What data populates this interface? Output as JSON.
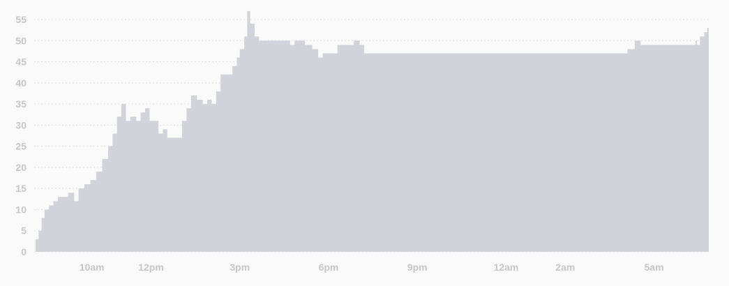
{
  "chart_data": {
    "type": "area",
    "title": "",
    "xlabel": "",
    "ylabel": "",
    "ylim": [
      0,
      55
    ],
    "y_ticks": [
      0,
      5,
      10,
      15,
      20,
      25,
      30,
      35,
      40,
      45,
      50,
      55
    ],
    "x_ticks": [
      {
        "label": "10am",
        "hour": 10
      },
      {
        "label": "12pm",
        "hour": 12
      },
      {
        "label": "3pm",
        "hour": 15
      },
      {
        "label": "6pm",
        "hour": 18
      },
      {
        "label": "9pm",
        "hour": 21
      },
      {
        "label": "12am",
        "hour": 24
      },
      {
        "label": "2am",
        "hour": 26
      },
      {
        "label": "5am",
        "hour": 29
      }
    ],
    "grid": true,
    "fill_color": "#d1d3da",
    "series": [
      {
        "points": [
          [
            8.05,
            0
          ],
          [
            8.1,
            3
          ],
          [
            8.2,
            5
          ],
          [
            8.3,
            8
          ],
          [
            8.4,
            10
          ],
          [
            8.55,
            11
          ],
          [
            8.7,
            12
          ],
          [
            8.85,
            13
          ],
          [
            9.0,
            13
          ],
          [
            9.2,
            14
          ],
          [
            9.4,
            12
          ],
          [
            9.55,
            15
          ],
          [
            9.75,
            16
          ],
          [
            9.95,
            17
          ],
          [
            10.15,
            19
          ],
          [
            10.35,
            22
          ],
          [
            10.55,
            25
          ],
          [
            10.7,
            28
          ],
          [
            10.85,
            32
          ],
          [
            11.0,
            35
          ],
          [
            11.15,
            31
          ],
          [
            11.3,
            32
          ],
          [
            11.5,
            31
          ],
          [
            11.65,
            33
          ],
          [
            11.8,
            34
          ],
          [
            11.95,
            31
          ],
          [
            12.1,
            31
          ],
          [
            12.25,
            28
          ],
          [
            12.4,
            29
          ],
          [
            12.55,
            27
          ],
          [
            12.75,
            27
          ],
          [
            12.9,
            27
          ],
          [
            13.05,
            31
          ],
          [
            13.2,
            34
          ],
          [
            13.35,
            37
          ],
          [
            13.55,
            36
          ],
          [
            13.75,
            35
          ],
          [
            13.9,
            36
          ],
          [
            14.05,
            35
          ],
          [
            14.2,
            38
          ],
          [
            14.35,
            42
          ],
          [
            14.55,
            42
          ],
          [
            14.75,
            44
          ],
          [
            14.9,
            46
          ],
          [
            15.0,
            48
          ],
          [
            15.15,
            51
          ],
          [
            15.25,
            57
          ],
          [
            15.35,
            54
          ],
          [
            15.5,
            51
          ],
          [
            15.65,
            50
          ],
          [
            15.8,
            50
          ],
          [
            16.0,
            50
          ],
          [
            16.2,
            50
          ],
          [
            16.5,
            50
          ],
          [
            16.7,
            49
          ],
          [
            16.85,
            50
          ],
          [
            17.2,
            49
          ],
          [
            17.45,
            48
          ],
          [
            17.65,
            46
          ],
          [
            17.8,
            47
          ],
          [
            18.1,
            47
          ],
          [
            18.3,
            49
          ],
          [
            18.6,
            49
          ],
          [
            18.85,
            50
          ],
          [
            19.05,
            49
          ],
          [
            19.2,
            47
          ],
          [
            19.6,
            47
          ],
          [
            20.0,
            47
          ],
          [
            21.0,
            47
          ],
          [
            22.0,
            47
          ],
          [
            23.0,
            47
          ],
          [
            24.0,
            47
          ],
          [
            25.0,
            47
          ],
          [
            26.0,
            47
          ],
          [
            27.0,
            47
          ],
          [
            27.95,
            47
          ],
          [
            28.1,
            48
          ],
          [
            28.35,
            50
          ],
          [
            28.55,
            49
          ],
          [
            29.0,
            49
          ],
          [
            29.5,
            49
          ],
          [
            30.0,
            49
          ],
          [
            30.4,
            50
          ],
          [
            30.45,
            49
          ],
          [
            30.55,
            51
          ],
          [
            30.7,
            52
          ],
          [
            30.8,
            53
          ],
          [
            30.85,
            54
          ]
        ]
      }
    ]
  }
}
